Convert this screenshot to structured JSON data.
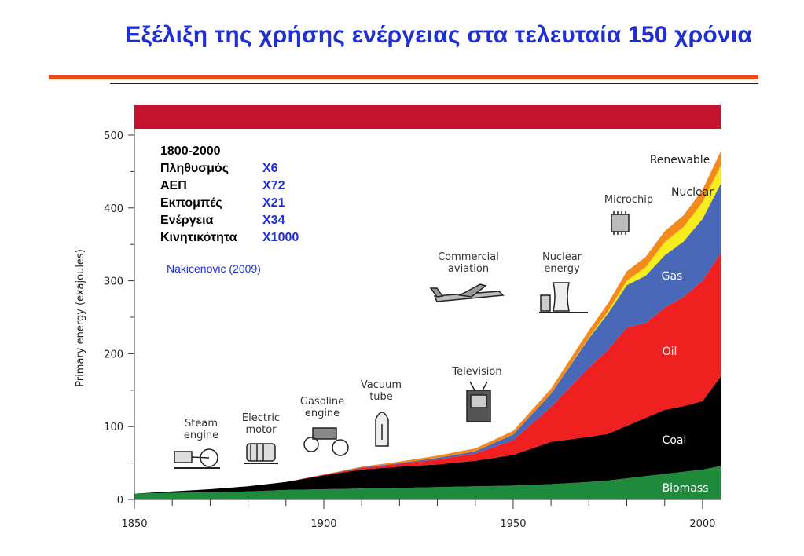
{
  "slide": {
    "title": "Εξέλιξη της χρήσης ενέργειας στα τελευταία 150 χρόνια"
  },
  "stats": {
    "heading": "1800-2000",
    "rows": [
      {
        "label": "Πληθυσμός",
        "value": "X6"
      },
      {
        "label": "ΑΕΠ",
        "value": "X72"
      },
      {
        "label": "Εκπομπές",
        "value": "X21"
      },
      {
        "label": "Ενέργεια",
        "value": "X34"
      },
      {
        "label": "Κινητικότητα",
        "value": "X1000"
      }
    ],
    "source": "Nakicenovic (2009)"
  },
  "colors": {
    "title": "#1f2fd6",
    "header_band": "#c4122f",
    "biomass": "#1f8a3b",
    "coal": "#000000",
    "oil": "#ee2020",
    "gas": "#4a68b8",
    "nuclear": "#f7ec1c",
    "renewable": "#f28a1c"
  },
  "chart_data": {
    "type": "area",
    "stacked": true,
    "ylabel": "Primary energy (exajoules)",
    "xlabel": "",
    "xlim": [
      1850,
      2005
    ],
    "ylim": [
      0,
      500
    ],
    "x_ticks": [
      1850,
      1900,
      1950,
      2000
    ],
    "y_ticks": [
      0,
      100,
      200,
      300,
      400,
      500
    ],
    "x": [
      1850,
      1860,
      1870,
      1880,
      1890,
      1900,
      1910,
      1920,
      1930,
      1940,
      1950,
      1960,
      1970,
      1975,
      1980,
      1985,
      1990,
      1995,
      2000,
      2005
    ],
    "series": [
      {
        "name": "Biomass",
        "color": "#1f8a3b",
        "values": [
          8,
          9,
          10,
          11,
          13,
          14,
          15,
          16,
          17,
          18,
          19,
          21,
          24,
          26,
          29,
          32,
          35,
          38,
          41,
          46
        ]
      },
      {
        "name": "Coal",
        "color": "#000000",
        "values": [
          0,
          2,
          4,
          7,
          11,
          19,
          26,
          29,
          31,
          35,
          42,
          58,
          62,
          64,
          72,
          80,
          88,
          90,
          94,
          124
        ]
      },
      {
        "name": "Oil",
        "color": "#ee2020",
        "values": [
          0,
          0,
          0,
          0,
          0,
          1,
          2,
          4,
          7,
          10,
          20,
          48,
          95,
          115,
          135,
          130,
          140,
          150,
          165,
          170
        ]
      },
      {
        "name": "Gas",
        "color": "#4a68b8",
        "values": [
          0,
          0,
          0,
          0,
          0,
          0,
          1,
          1,
          2,
          3,
          8,
          18,
          40,
          50,
          58,
          65,
          72,
          76,
          85,
          95
        ]
      },
      {
        "name": "Nuclear",
        "color": "#f7ec1c",
        "values": [
          0,
          0,
          0,
          0,
          0,
          0,
          0,
          0,
          0,
          0,
          0,
          0,
          1,
          3,
          6,
          12,
          18,
          20,
          23,
          25
        ]
      },
      {
        "name": "Renewable",
        "color": "#f28a1c",
        "values": [
          0,
          0,
          0,
          0,
          0,
          0,
          1,
          2,
          3,
          4,
          5,
          7,
          10,
          11,
          13,
          14,
          15,
          16,
          17,
          20
        ]
      }
    ],
    "annotations": [
      {
        "text": "Steam engine",
        "x": 1866
      },
      {
        "text": "Electric motor",
        "x": 1883
      },
      {
        "text": "Gasoline engine",
        "x": 1900
      },
      {
        "text": "Vacuum tube",
        "x": 1913
      },
      {
        "text": "Television",
        "x": 1940
      },
      {
        "text": "Commercial aviation",
        "x": 1947
      },
      {
        "text": "Nuclear energy",
        "x": 1966
      },
      {
        "text": "Microchip",
        "x": 1978
      }
    ]
  }
}
